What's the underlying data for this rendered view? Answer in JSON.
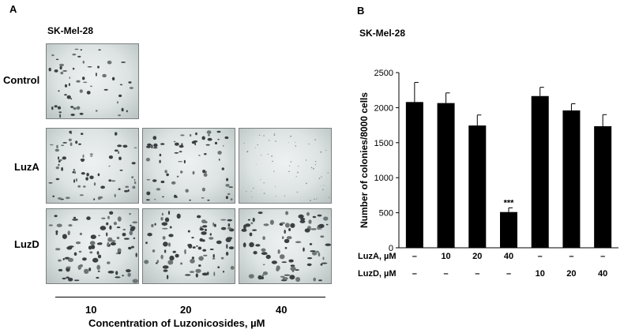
{
  "panel_a": {
    "label": "A",
    "cell_line": "SK-Mel-28",
    "rows": [
      "Control",
      "LuzA",
      "LuzD"
    ],
    "concentrations": [
      "10",
      "20",
      "40"
    ],
    "x_title": "Concentration of Luzonicosides, µM"
  },
  "panel_b": {
    "label": "B"
  },
  "chart_data": {
    "type": "bar",
    "title": "SK-Mel-28",
    "ylabel": "Number of colonies/8000 cells",
    "ylim": [
      0,
      2500
    ],
    "yticks": [
      0,
      500,
      1000,
      1500,
      2000,
      2500
    ],
    "values": [
      2080,
      2065,
      1745,
      510,
      2165,
      1960,
      1735
    ],
    "errors": [
      280,
      145,
      150,
      60,
      125,
      95,
      165
    ],
    "annotations": [
      "",
      "",
      "",
      "***",
      "",
      "",
      ""
    ],
    "color": "#000000",
    "condition_rows": [
      {
        "label": "LuzA, µM",
        "values": [
          "–",
          "10",
          "20",
          "40",
          "–",
          "–",
          "–"
        ]
      },
      {
        "label": "LuzD, µM",
        "values": [
          "–",
          "–",
          "–",
          "–",
          "10",
          "20",
          "40"
        ]
      }
    ]
  }
}
